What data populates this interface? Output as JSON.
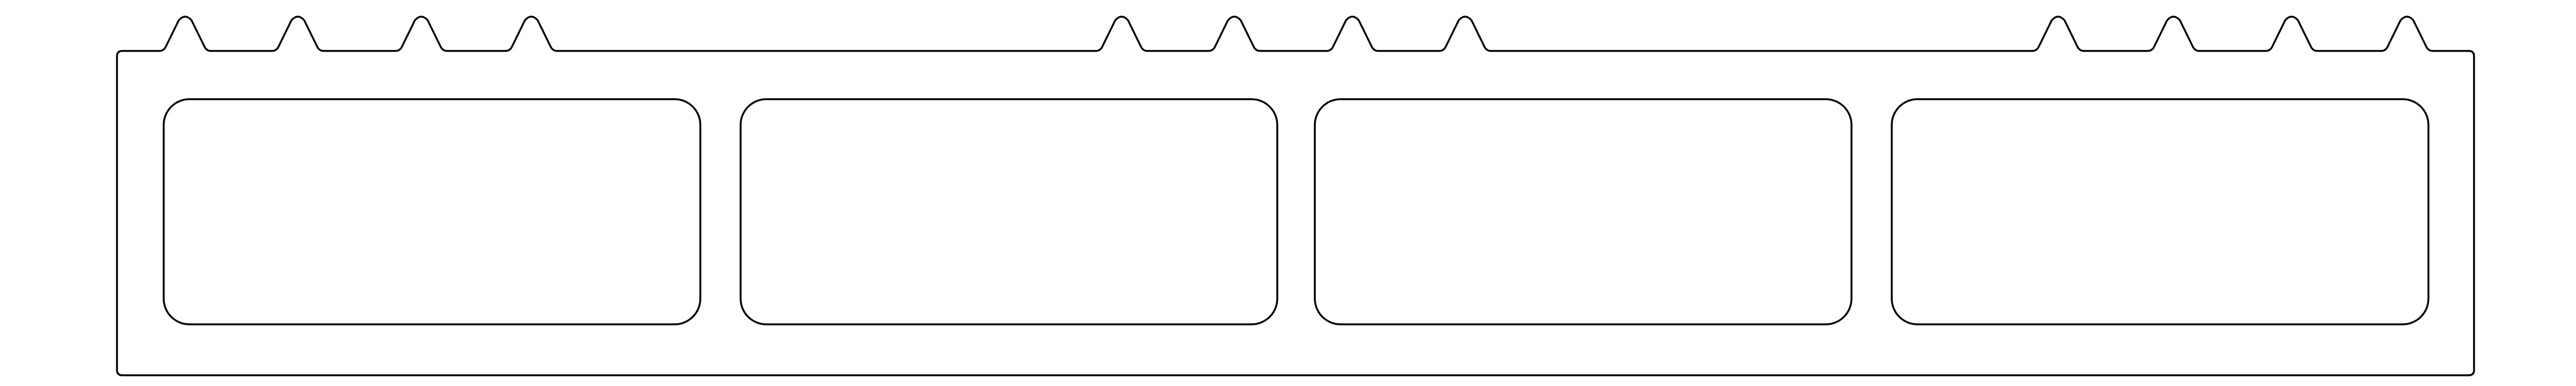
{
  "colors": {
    "stroke": "#000000",
    "background": "#ffffff"
  },
  "frame": {
    "notch_groups": 3,
    "notches_per_group": 4
  },
  "panels": [
    {
      "id": "panel-1"
    },
    {
      "id": "panel-2"
    },
    {
      "id": "panel-3"
    },
    {
      "id": "panel-4"
    }
  ]
}
